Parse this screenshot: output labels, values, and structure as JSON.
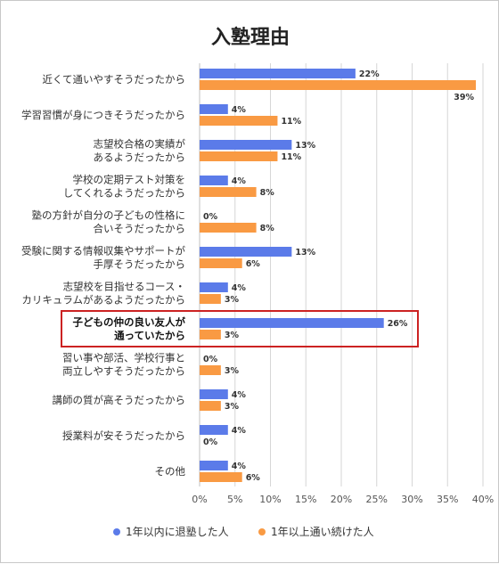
{
  "chart_data": {
    "type": "bar",
    "orientation": "horizontal",
    "title": "入塾理由",
    "categories": [
      [
        "近くて通いやすそうだったから"
      ],
      [
        "学習習慣が身につきそうだったから"
      ],
      [
        "志望校合格の実績が",
        "あるようだったから"
      ],
      [
        "学校の定期テスト対策を",
        "してくれるようだったから"
      ],
      [
        "塾の方針が自分の子どもの性格に",
        "合いそうだったから"
      ],
      [
        "受験に関する情報収集やサポートが",
        "手厚そうだったから"
      ],
      [
        "志望校を目指せるコース・",
        "カリキュラムがあるようだったから"
      ],
      [
        "子どもの仲の良い友人が",
        "通っていたから"
      ],
      [
        "習い事や部活、学校行事と",
        "両立しやすそうだったから"
      ],
      [
        "講師の質が高そうだったから"
      ],
      [
        "授業料が安そうだったから"
      ],
      [
        "その他"
      ]
    ],
    "highlight_index": 7,
    "series": [
      {
        "name": "1年以内に退塾した人",
        "color": "#5b7be9",
        "values": [
          22,
          4,
          13,
          4,
          0,
          13,
          4,
          26,
          0,
          4,
          4,
          4
        ]
      },
      {
        "name": "1年以上通い続けた人",
        "color": "#f99a43",
        "values": [
          39,
          11,
          11,
          8,
          8,
          6,
          3,
          3,
          3,
          3,
          0,
          6
        ]
      }
    ],
    "value_suffix": "%",
    "xlim": [
      0,
      40
    ],
    "xticks": [
      "0%",
      "5%",
      "10%",
      "15%",
      "20%",
      "25%",
      "30%",
      "35%",
      "40%"
    ],
    "grid": true,
    "legend_position": "bottom",
    "highlight_color": "#cc2222"
  }
}
